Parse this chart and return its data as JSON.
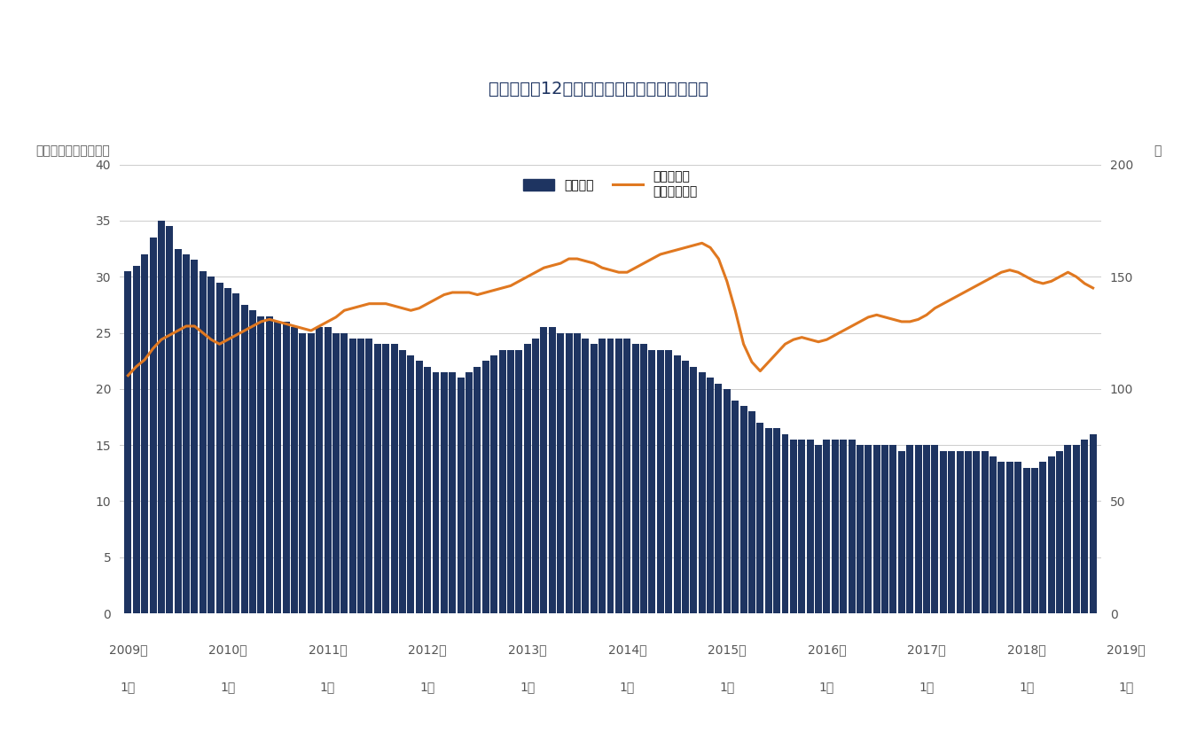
{
  "title": "倒産件数（12カ月移動平均）とガソリン価格",
  "ylabel_left": "倒産件数（移動平均）",
  "ylabel_right": "円",
  "bar_color": "#1e3461",
  "line_color": "#e07820",
  "background_color": "#ffffff",
  "ylim_left": [
    0,
    40
  ],
  "ylim_right": [
    0,
    200
  ],
  "yticks_left": [
    0,
    5,
    10,
    15,
    20,
    25,
    30,
    35,
    40
  ],
  "yticks_right": [
    0,
    50,
    100,
    150,
    200
  ],
  "legend_bar_label": "移動平均",
  "legend_line_label1": "レギュラー",
  "legend_line_label2": "ガソリン価格",
  "bar_data": [
    30.5,
    31.0,
    32.0,
    33.5,
    35.0,
    34.5,
    32.5,
    32.0,
    31.5,
    30.5,
    30.0,
    29.5,
    29.0,
    28.5,
    27.5,
    27.0,
    26.5,
    26.5,
    26.0,
    26.0,
    25.5,
    25.0,
    25.0,
    25.5,
    25.5,
    25.0,
    25.0,
    24.5,
    24.5,
    24.5,
    24.0,
    24.0,
    24.0,
    23.5,
    23.0,
    22.5,
    22.0,
    21.5,
    21.5,
    21.5,
    21.0,
    21.5,
    22.0,
    22.5,
    23.0,
    23.5,
    23.5,
    23.5,
    24.0,
    24.5,
    25.5,
    25.5,
    25.0,
    25.0,
    25.0,
    24.5,
    24.0,
    24.5,
    24.5,
    24.5,
    24.5,
    24.0,
    24.0,
    23.5,
    23.5,
    23.5,
    23.0,
    22.5,
    22.0,
    21.5,
    21.0,
    20.5,
    20.0,
    19.0,
    18.5,
    18.0,
    17.0,
    16.5,
    16.5,
    16.0,
    15.5,
    15.5,
    15.5,
    15.0,
    15.5,
    15.5,
    15.5,
    15.5,
    15.0,
    15.0,
    15.0,
    15.0,
    15.0,
    14.5,
    15.0,
    15.0,
    15.0,
    15.0,
    14.5,
    14.5,
    14.5,
    14.5,
    14.5,
    14.5,
    14.0,
    13.5,
    13.5,
    13.5,
    13.0,
    13.0,
    13.5,
    14.0,
    14.5,
    15.0,
    15.0,
    15.5,
    16.0
  ],
  "line_data": [
    106,
    110,
    113,
    118,
    122,
    124,
    126,
    128,
    128,
    125,
    122,
    120,
    122,
    124,
    126,
    128,
    130,
    131,
    130,
    129,
    128,
    127,
    126,
    128,
    130,
    132,
    135,
    136,
    137,
    138,
    138,
    138,
    137,
    136,
    135,
    136,
    138,
    140,
    142,
    143,
    143,
    143,
    142,
    143,
    144,
    145,
    146,
    148,
    150,
    152,
    154,
    155,
    156,
    158,
    158,
    157,
    156,
    154,
    153,
    152,
    152,
    154,
    156,
    158,
    160,
    161,
    162,
    163,
    164,
    165,
    163,
    158,
    148,
    135,
    120,
    112,
    108,
    112,
    116,
    120,
    122,
    123,
    122,
    121,
    122,
    124,
    126,
    128,
    130,
    132,
    133,
    132,
    131,
    130,
    130,
    131,
    133,
    136,
    138,
    140,
    142,
    144,
    146,
    148,
    150,
    152,
    153,
    152,
    150,
    148,
    147,
    148,
    150,
    152,
    150,
    147,
    145
  ],
  "x_tick_positions": [
    0,
    12,
    24,
    36,
    48,
    60,
    72,
    84,
    96,
    108,
    120
  ],
  "x_tick_labels_year": [
    "2009年",
    "2010年",
    "2011年",
    "2012年",
    "2013年",
    "2014年",
    "2015年",
    "2016年",
    "2017年",
    "2018年",
    "2019年"
  ],
  "x_tick_labels_month": [
    "1月",
    "1月",
    "1月",
    "1月",
    "1月",
    "1月",
    "1月",
    "1月",
    "1月",
    "1月",
    "1月"
  ],
  "grid_color": "#cccccc",
  "tick_color": "#555555",
  "title_color": "#1e3461",
  "label_color": "#555555"
}
